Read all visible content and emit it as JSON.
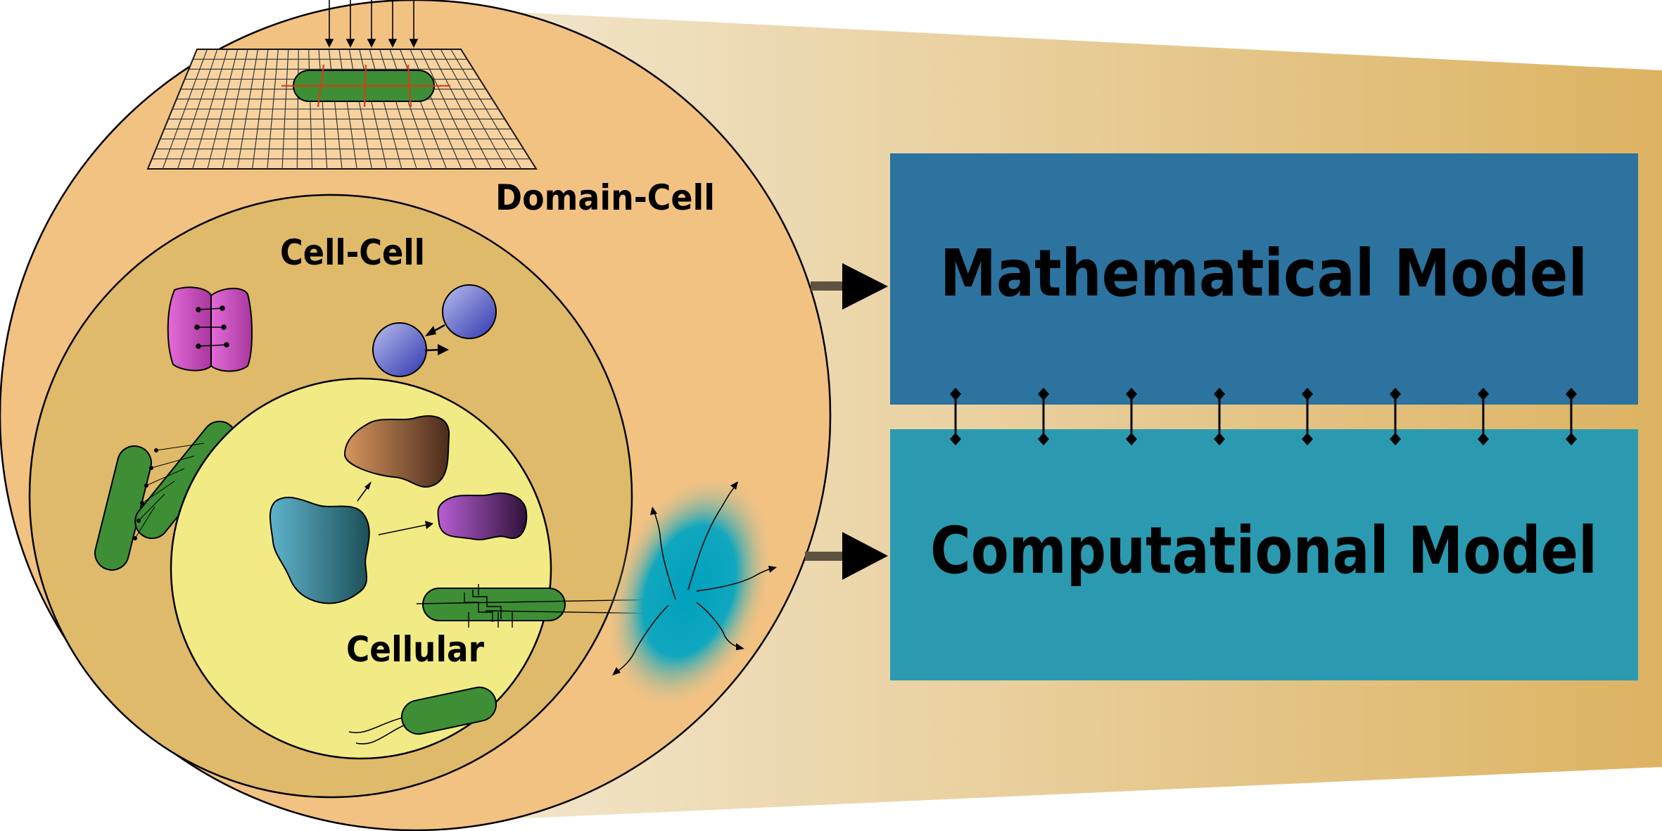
{
  "labels": {
    "domain_cell": "Domain-Cell",
    "cell_cell": "Cell-Cell",
    "cellular": "Cellular"
  },
  "boxes": {
    "mathematical": "Mathematical Model",
    "computational": "Computational Model"
  },
  "colors": {
    "domain_fill": "#F2C283",
    "cellcell_fill": "#DFBA6A",
    "cellular_fill": "#F2EB85",
    "math_box": "#2C73A0",
    "comp_box": "#2B9AB0",
    "funnel_start": "#F3E9D2",
    "funnel_end": "#DDB362",
    "bacterium_green": "#3E8E35",
    "blob_cyan": "#00A0BE"
  },
  "icons": {
    "connector": "double-headed-connector",
    "arrow": "right-arrow-icon",
    "grid": "mesh-grid-icon"
  },
  "connector_count": 8
}
